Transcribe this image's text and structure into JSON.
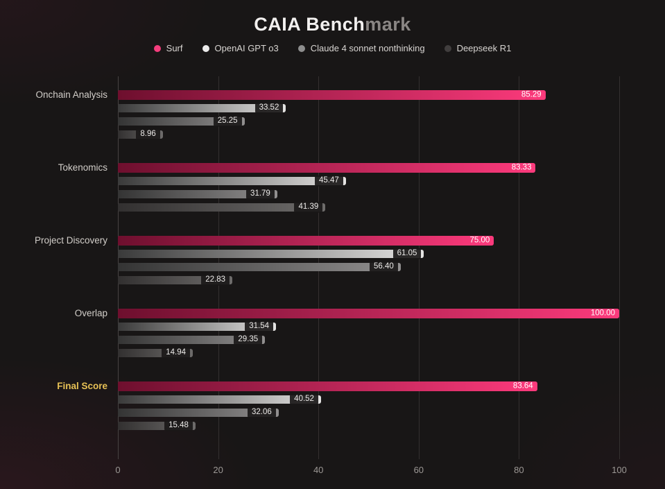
{
  "title": {
    "primary": "CAIA Bench",
    "secondary": "mark"
  },
  "legend": [
    {
      "label": "Surf",
      "color": "#f53d7d"
    },
    {
      "label": "OpenAI GPT o3",
      "color": "#ececec"
    },
    {
      "label": "Claude 4 sonnet nonthinking",
      "color": "#8e8e8e"
    },
    {
      "label": "Deepseek R1",
      "color": "#413e3e"
    }
  ],
  "chart_data": {
    "type": "bar",
    "orientation": "horizontal",
    "title": "CAIA Benchmark",
    "categories": [
      "Onchain Analysis",
      "Tokenomics",
      "Project Discovery",
      "Overlap",
      "Final Score"
    ],
    "highlight_category": "Final Score",
    "series": [
      {
        "name": "Surf",
        "values": [
          85.29,
          83.33,
          75.0,
          100.0,
          83.64
        ],
        "gradient": [
          "#6e0f2e",
          "#fd3a7c"
        ]
      },
      {
        "name": "OpenAI GPT o3",
        "values": [
          33.52,
          45.47,
          61.05,
          31.54,
          40.52
        ],
        "gradient": [
          "#3a3a3a",
          "#e5e4e3"
        ]
      },
      {
        "name": "Claude 4 sonnet nonthinking",
        "values": [
          25.25,
          31.79,
          56.4,
          29.35,
          32.06
        ],
        "gradient": [
          "#343434",
          "#929090"
        ]
      },
      {
        "name": "Deepseek R1",
        "values": [
          8.96,
          41.39,
          22.83,
          14.94,
          15.48
        ],
        "gradient": [
          "#323030",
          "#6e6c6b"
        ]
      }
    ],
    "xlim": [
      0,
      100
    ],
    "x_ticks": [
      0,
      20,
      40,
      60,
      80,
      100
    ],
    "grid": true,
    "legend_position": "top"
  }
}
